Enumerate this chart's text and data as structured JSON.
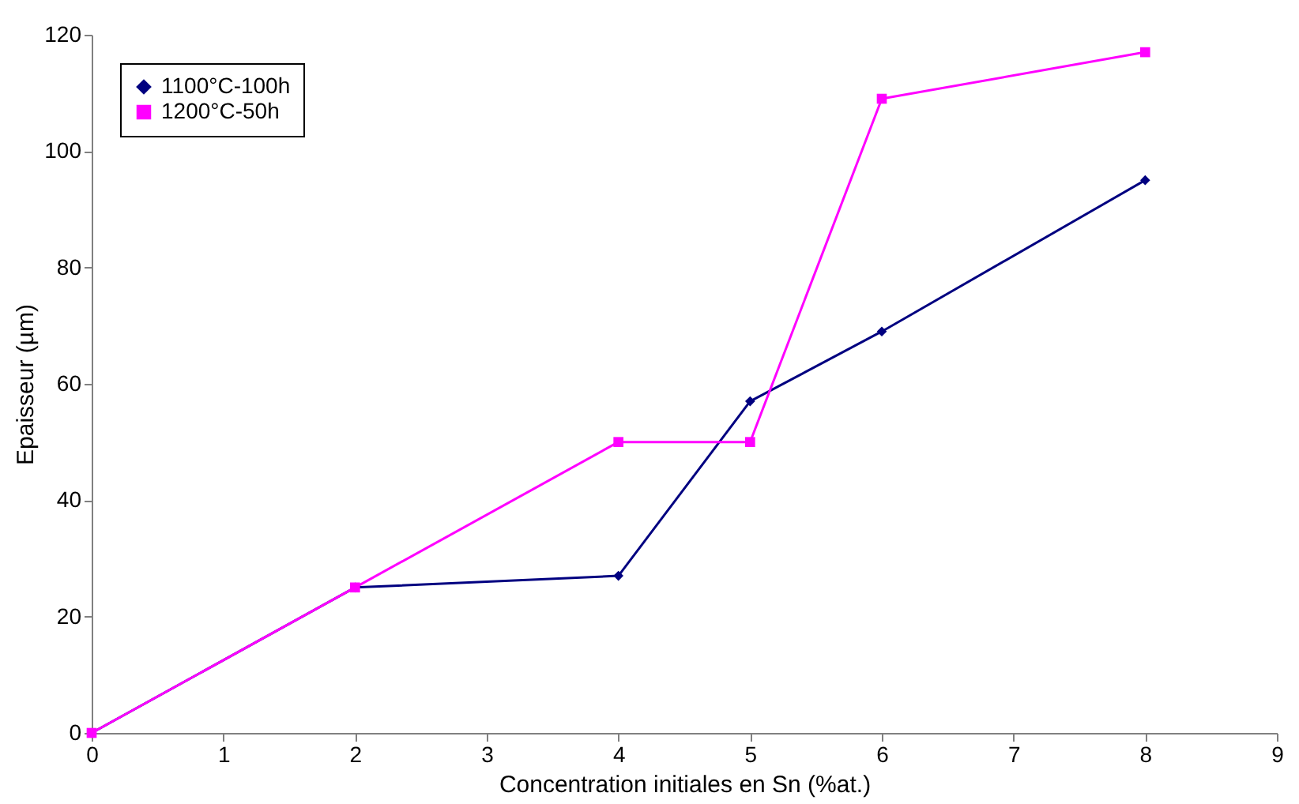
{
  "chart_data": {
    "type": "line",
    "xlabel": "Concentration initiales en Sn (%at.)",
    "ylabel": "Epaisseur (µm)",
    "xlim": [
      0,
      9
    ],
    "xticks": [
      0,
      1,
      2,
      3,
      4,
      5,
      6,
      7,
      8,
      9
    ],
    "ylim": [
      0,
      120
    ],
    "yticks": [
      0,
      20,
      40,
      60,
      80,
      100,
      120
    ],
    "grid": false,
    "legend": "top left",
    "line_style": "solid",
    "series": [
      {
        "name": "1100°C-100h",
        "color": "#000080",
        "marker": "diamond",
        "x": [
          0,
          2,
          4,
          5,
          6,
          8
        ],
        "values": [
          0,
          25,
          27,
          57,
          69,
          95
        ]
      },
      {
        "name": "1200°C-50h",
        "color": "#ff00ff",
        "marker": "square",
        "x": [
          0,
          2,
          4,
          5,
          6,
          8
        ],
        "values": [
          0,
          25,
          50,
          50,
          109,
          117
        ]
      }
    ]
  }
}
